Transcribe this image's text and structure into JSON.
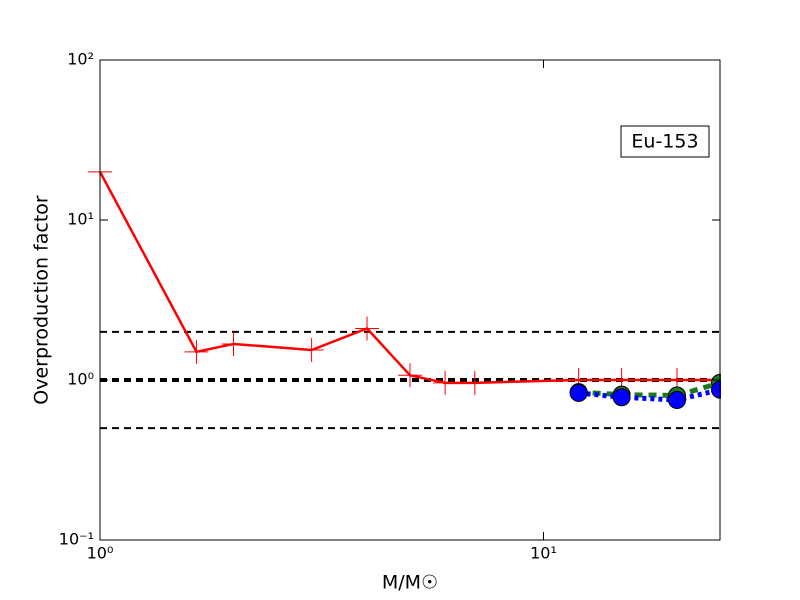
{
  "chart_data": {
    "type": "line",
    "xlabel": "M/M☉",
    "ylabel": "Overproduction factor",
    "annotation": "Eu-153",
    "xscale": "log",
    "yscale": "log",
    "xlim": [
      1,
      25
    ],
    "ylim": [
      0.1,
      100
    ],
    "xticks": [
      {
        "value": 1,
        "label": "10⁰"
      },
      {
        "value": 10,
        "label": "10¹"
      }
    ],
    "yticks": [
      {
        "value": 0.1,
        "label": "10⁻¹"
      },
      {
        "value": 1,
        "label": "10⁰"
      },
      {
        "value": 10,
        "label": "10¹"
      },
      {
        "value": 100,
        "label": "10²"
      }
    ],
    "hlines": [
      {
        "value": 2,
        "width": 2
      },
      {
        "value": 1,
        "width": 4
      },
      {
        "value": 0.5,
        "width": 2
      }
    ],
    "series": [
      {
        "color": "#ff0000",
        "marker": "plus",
        "dash": "solid",
        "x": [
          1,
          1.65,
          2,
          3,
          4,
          5,
          6,
          7,
          12,
          15,
          20,
          25
        ],
        "values": [
          20,
          1.5,
          1.68,
          1.54,
          2.1,
          1.07,
          0.96,
          0.96,
          1.0,
          1.0,
          1.0,
          1.0
        ]
      },
      {
        "color": "#1a7a1a",
        "marker": "circle",
        "dash": "dashed",
        "x": [
          12,
          15,
          20,
          25
        ],
        "values": [
          0.84,
          0.81,
          0.8,
          0.96
        ]
      },
      {
        "color": "#0000ff",
        "marker": "circle",
        "dash": "dotted",
        "x": [
          12,
          15,
          20,
          25
        ],
        "values": [
          0.83,
          0.78,
          0.75,
          0.87
        ]
      }
    ]
  }
}
